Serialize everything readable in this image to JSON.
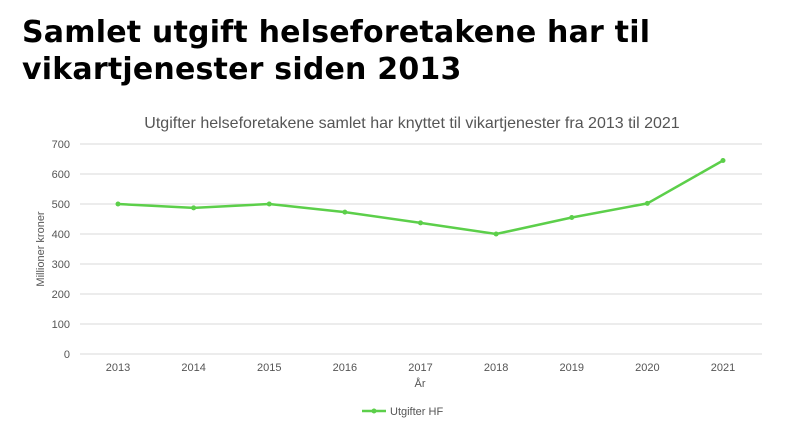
{
  "headline": "Samlet utgift helseforetakene har til vikartjenester siden 2013",
  "chart_data": {
    "type": "line",
    "title": "Utgifter helseforetakene samlet har knyttet til vikartjenester fra 2013 til 2021",
    "xlabel": "År",
    "ylabel": "Millioner kroner",
    "categories": [
      "2013",
      "2014",
      "2015",
      "2016",
      "2017",
      "2018",
      "2019",
      "2020",
      "2021"
    ],
    "series": [
      {
        "name": "Utgifter HF",
        "values": [
          500,
          487,
          500,
          473,
          437,
          400,
          455,
          502,
          645
        ],
        "color": "#5ccf4a"
      }
    ],
    "ylim": [
      0,
      700
    ],
    "yticks": [
      0,
      100,
      200,
      300,
      400,
      500,
      600,
      700
    ],
    "grid": true,
    "legend": "bottom"
  }
}
